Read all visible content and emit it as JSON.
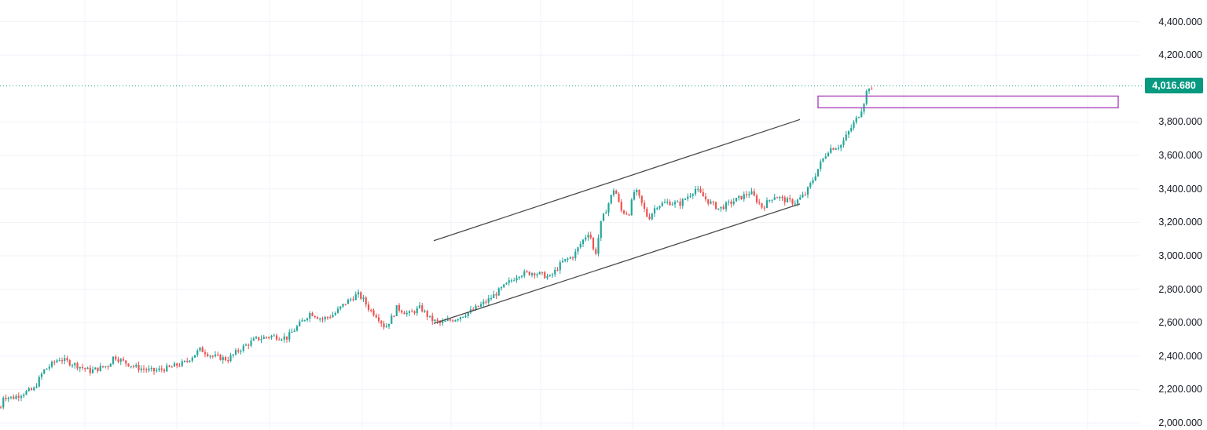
{
  "chart_data": {
    "type": "candlestick",
    "y_axis": {
      "side": "right",
      "range": [
        2000,
        4450
      ],
      "ticks": [
        {
          "value": 4400,
          "label": "4,400.000"
        },
        {
          "value": 4200,
          "label": "4,200.000"
        },
        {
          "value": 3800,
          "label": "3,800.000"
        },
        {
          "value": 3600,
          "label": "3,600.000"
        },
        {
          "value": 3400,
          "label": "3,400.000"
        },
        {
          "value": 3200,
          "label": "3,200.000"
        },
        {
          "value": 3000,
          "label": "3,000.000"
        },
        {
          "value": 2800,
          "label": "2,800.000"
        },
        {
          "value": 2600,
          "label": "2,600.000"
        },
        {
          "value": 2400,
          "label": "2,400.000"
        },
        {
          "value": 2200,
          "label": "2,200.000"
        },
        {
          "value": 2000,
          "label": "2,000.000"
        }
      ]
    },
    "grid": true,
    "current_price": {
      "value": 4016.68,
      "label": "4,016.680"
    },
    "price_path": [
      [
        0,
        2070
      ],
      [
        4,
        2160
      ],
      [
        16,
        2150
      ],
      [
        30,
        2180
      ],
      [
        43,
        2200
      ],
      [
        55,
        2310
      ],
      [
        75,
        2385
      ],
      [
        95,
        2350
      ],
      [
        115,
        2310
      ],
      [
        138,
        2345
      ],
      [
        145,
        2400
      ],
      [
        155,
        2370
      ],
      [
        175,
        2330
      ],
      [
        195,
        2310
      ],
      [
        215,
        2330
      ],
      [
        235,
        2360
      ],
      [
        255,
        2440
      ],
      [
        270,
        2400
      ],
      [
        290,
        2380
      ],
      [
        305,
        2440
      ],
      [
        325,
        2500
      ],
      [
        345,
        2520
      ],
      [
        365,
        2510
      ],
      [
        385,
        2610
      ],
      [
        395,
        2660
      ],
      [
        410,
        2620
      ],
      [
        425,
        2650
      ],
      [
        440,
        2720
      ],
      [
        455,
        2770
      ],
      [
        462,
        2740
      ],
      [
        470,
        2680
      ],
      [
        480,
        2640
      ],
      [
        490,
        2570
      ],
      [
        500,
        2640
      ],
      [
        505,
        2690
      ],
      [
        520,
        2650
      ],
      [
        535,
        2690
      ],
      [
        548,
        2620
      ],
      [
        560,
        2595
      ],
      [
        580,
        2625
      ],
      [
        600,
        2670
      ],
      [
        620,
        2730
      ],
      [
        640,
        2810
      ],
      [
        660,
        2890
      ],
      [
        680,
        2900
      ],
      [
        700,
        2870
      ],
      [
        715,
        2960
      ],
      [
        730,
        3000
      ],
      [
        740,
        3080
      ],
      [
        750,
        3150
      ],
      [
        757,
        2990
      ],
      [
        765,
        3200
      ],
      [
        775,
        3320
      ],
      [
        782,
        3410
      ],
      [
        790,
        3270
      ],
      [
        800,
        3250
      ],
      [
        808,
        3400
      ],
      [
        815,
        3330
      ],
      [
        825,
        3220
      ],
      [
        835,
        3300
      ],
      [
        850,
        3320
      ],
      [
        865,
        3310
      ],
      [
        885,
        3400
      ],
      [
        900,
        3330
      ],
      [
        915,
        3280
      ],
      [
        935,
        3330
      ],
      [
        955,
        3380
      ],
      [
        970,
        3290
      ],
      [
        985,
        3360
      ],
      [
        1000,
        3330
      ],
      [
        1012,
        3320
      ],
      [
        1025,
        3370
      ],
      [
        1035,
        3460
      ],
      [
        1045,
        3560
      ],
      [
        1055,
        3640
      ],
      [
        1070,
        3660
      ],
      [
        1085,
        3780
      ],
      [
        1095,
        3860
      ],
      [
        1100,
        3930
      ],
      [
        1105,
        4020
      ],
      [
        1112,
        3960
      ]
    ],
    "annotations": [
      {
        "type": "trendline",
        "from": {
          "x": 552,
          "y": 3090
        },
        "to": {
          "x": 1018,
          "y": 3815
        }
      },
      {
        "type": "trendline",
        "from": {
          "x": 552,
          "y": 2595
        },
        "to": {
          "x": 1018,
          "y": 3310
        }
      },
      {
        "type": "zone",
        "x_from": 1041,
        "x_to": 1423,
        "y_from": 3885,
        "y_to": 3955
      }
    ]
  },
  "colors": {
    "up": "#26a69a",
    "down": "#ef5350",
    "grid": "#f0f3fa",
    "trendline": "#4a4a4a",
    "zone": "#ab47bc",
    "current_price": "#089981"
  }
}
